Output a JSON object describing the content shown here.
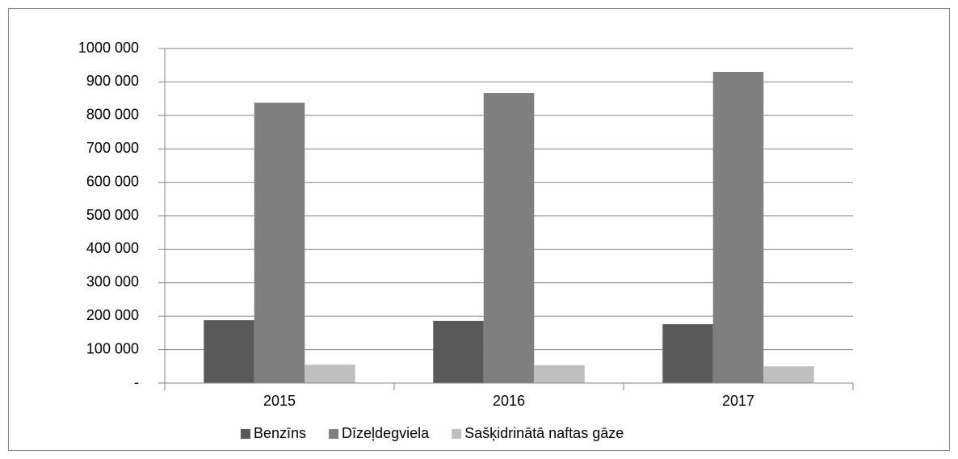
{
  "chart_data": {
    "type": "bar",
    "categories": [
      "2015",
      "2016",
      "2017"
    ],
    "series": [
      {
        "name": "Benzīns",
        "color": "#595959",
        "values": [
          188000,
          186000,
          176000
        ]
      },
      {
        "name": "Dīzeļdegviela",
        "color": "#7f7f7f",
        "values": [
          838000,
          867000,
          930000
        ]
      },
      {
        "name": "Sašķidrinātā naftas gāze",
        "color": "#bfbfbf",
        "values": [
          55000,
          53000,
          50000
        ]
      }
    ],
    "ylim": [
      0,
      1000000
    ],
    "yticks": [
      {
        "value": 0,
        "label": "-"
      },
      {
        "value": 100000,
        "label": "100 000"
      },
      {
        "value": 200000,
        "label": "200 000"
      },
      {
        "value": 300000,
        "label": "300 000"
      },
      {
        "value": 400000,
        "label": "400 000"
      },
      {
        "value": 500000,
        "label": "500 000"
      },
      {
        "value": 600000,
        "label": "600 000"
      },
      {
        "value": 700000,
        "label": "700 000"
      },
      {
        "value": 800000,
        "label": "800 000"
      },
      {
        "value": 900000,
        "label": "900 000"
      },
      {
        "value": 1000000,
        "label": "1000 000"
      }
    ],
    "grid": true,
    "legend": "bottom"
  }
}
